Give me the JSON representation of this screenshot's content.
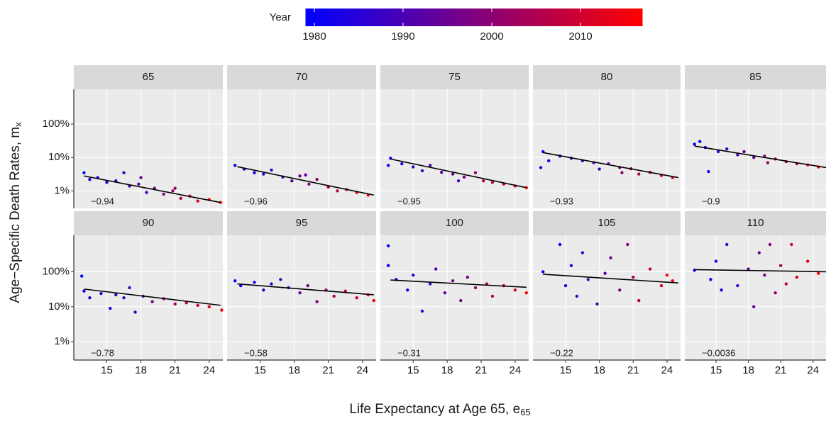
{
  "chart_data": {
    "type": "scatter",
    "x_label": "Life Expectancy at Age 65, e",
    "x_label_sub": "65",
    "y_label": "Age−Specific Death Rates, m",
    "y_label_sub": "x",
    "log_y": true,
    "grid": true,
    "xlim": [
      12.1,
      25.2
    ],
    "xticks": [
      15,
      18,
      21,
      24
    ],
    "ylim": [
      0.3,
      1100
    ],
    "yticks": [
      {
        "value": 1,
        "label": "1%"
      },
      {
        "value": 10,
        "label": "10%"
      },
      {
        "value": 100,
        "label": "100%"
      }
    ],
    "fit_color": "#000000",
    "colorbar": {
      "title": "Year",
      "lim": [
        1979,
        2017
      ],
      "ticks": [
        1980,
        1990,
        2000,
        2010
      ],
      "low": "#0000ff",
      "high": "#ff0000"
    },
    "facets": [
      {
        "label": "65",
        "corr": "−0.94",
        "fit_x": [
          13,
          25
        ],
        "fit_y": [
          2.8,
          0.45
        ],
        "points": [
          [
            13,
            3.5,
            1979
          ],
          [
            13.5,
            2.2,
            1980
          ],
          [
            14.2,
            2.5,
            1981
          ],
          [
            15,
            1.8,
            1984
          ],
          [
            15.8,
            2.0,
            1986
          ],
          [
            16.5,
            3.5,
            1988
          ],
          [
            17,
            1.4,
            1989
          ],
          [
            17.8,
            1.6,
            1992
          ],
          [
            18.5,
            0.9,
            1990
          ],
          [
            19.2,
            1.2,
            1996
          ],
          [
            20,
            0.8,
            2000
          ],
          [
            20.8,
            1.0,
            2003
          ],
          [
            21.5,
            0.6,
            2006
          ],
          [
            22.3,
            0.7,
            2009
          ],
          [
            23,
            0.5,
            2012
          ],
          [
            24,
            0.55,
            2015
          ],
          [
            25,
            0.45,
            2017
          ],
          [
            18,
            2.5,
            1995
          ],
          [
            21,
            1.2,
            2001
          ]
        ]
      },
      {
        "label": "70",
        "corr": "−0.96",
        "fit_x": [
          13,
          25
        ],
        "fit_y": [
          5.3,
          0.75
        ],
        "points": [
          [
            12.8,
            5.8,
            1979
          ],
          [
            13.6,
            4.5,
            1980
          ],
          [
            14.5,
            3.5,
            1983
          ],
          [
            15.3,
            3.2,
            1985
          ],
          [
            16,
            4.2,
            1988
          ],
          [
            17,
            2.6,
            1990
          ],
          [
            17.8,
            2.0,
            1993
          ],
          [
            18.5,
            2.8,
            1995
          ],
          [
            19.3,
            1.6,
            1998
          ],
          [
            20,
            2.2,
            2001
          ],
          [
            21,
            1.3,
            2004
          ],
          [
            21.8,
            1.0,
            2007
          ],
          [
            22.6,
            1.1,
            2010
          ],
          [
            23.5,
            0.9,
            2013
          ],
          [
            24.5,
            0.75,
            2016
          ],
          [
            19,
            3.0,
            1992
          ]
        ]
      },
      {
        "label": "75",
        "corr": "−0.95",
        "fit_x": [
          13,
          25
        ],
        "fit_y": [
          9,
          1.25
        ],
        "points": [
          [
            13,
            9.5,
            1979
          ],
          [
            12.8,
            5.8,
            1980
          ],
          [
            14,
            6.5,
            1982
          ],
          [
            15,
            5.2,
            1985
          ],
          [
            15.8,
            4.0,
            1987
          ],
          [
            16.5,
            5.8,
            1990
          ],
          [
            17.5,
            3.6,
            1992
          ],
          [
            18.5,
            3.2,
            1995
          ],
          [
            19.5,
            2.6,
            1998
          ],
          [
            20.5,
            3.5,
            2001
          ],
          [
            21.2,
            2.0,
            2004
          ],
          [
            22,
            1.8,
            2007
          ],
          [
            23,
            1.6,
            2010
          ],
          [
            24,
            1.4,
            2013
          ],
          [
            25,
            1.25,
            2016
          ],
          [
            19,
            2.0,
            1990
          ]
        ]
      },
      {
        "label": "80",
        "corr": "−0.93",
        "fit_x": [
          13,
          25
        ],
        "fit_y": [
          14,
          2.5
        ],
        "points": [
          [
            13,
            15,
            1979
          ],
          [
            12.8,
            5,
            1980
          ],
          [
            13.5,
            8,
            1981
          ],
          [
            14.5,
            11,
            1983
          ],
          [
            15.5,
            9.5,
            1986
          ],
          [
            16.5,
            8,
            1989
          ],
          [
            17.5,
            7,
            1992
          ],
          [
            18,
            4.5,
            1988
          ],
          [
            18.8,
            6.5,
            1995
          ],
          [
            19.8,
            5,
            1998
          ],
          [
            20.8,
            4.6,
            2002
          ],
          [
            21.5,
            3.2,
            2005
          ],
          [
            22.5,
            3.6,
            2008
          ],
          [
            23.5,
            2.9,
            2011
          ],
          [
            24.5,
            2.5,
            2015
          ],
          [
            20,
            3.5,
            2000
          ]
        ]
      },
      {
        "label": "85",
        "corr": "−0.9",
        "fit_x": [
          13,
          25.2
        ],
        "fit_y": [
          22,
          5
        ],
        "points": [
          [
            13,
            25,
            1979
          ],
          [
            13.5,
            30,
            1980
          ],
          [
            14,
            20,
            1982
          ],
          [
            14.3,
            3.8,
            1981
          ],
          [
            15.2,
            15,
            1984
          ],
          [
            16,
            18,
            1987
          ],
          [
            17,
            12,
            1990
          ],
          [
            17.6,
            15,
            1992
          ],
          [
            18.5,
            10,
            1994
          ],
          [
            19.5,
            11,
            1997
          ],
          [
            20.5,
            9,
            2000
          ],
          [
            21.5,
            7.5,
            2004
          ],
          [
            22.5,
            6.5,
            2008
          ],
          [
            23.5,
            6,
            2012
          ],
          [
            24.5,
            5.2,
            2015
          ],
          [
            19.8,
            7,
            2001
          ]
        ]
      },
      {
        "label": "90",
        "corr": "−0.78",
        "fit_x": [
          13,
          25
        ],
        "fit_y": [
          32,
          11
        ],
        "points": [
          [
            12.8,
            75,
            1979
          ],
          [
            13,
            28,
            1980
          ],
          [
            13.5,
            18,
            1981
          ],
          [
            14.5,
            24,
            1983
          ],
          [
            15.3,
            9,
            1984
          ],
          [
            15.8,
            22,
            1986
          ],
          [
            16.5,
            18,
            1988
          ],
          [
            17,
            35,
            1990
          ],
          [
            17.5,
            7,
            1989
          ],
          [
            18.2,
            20,
            1993
          ],
          [
            19,
            14,
            1996
          ],
          [
            20,
            17,
            1999
          ],
          [
            21,
            12,
            2003
          ],
          [
            22,
            13,
            2006
          ],
          [
            23,
            11,
            2010
          ],
          [
            24,
            10,
            2013
          ],
          [
            25.1,
            8,
            2016
          ]
        ]
      },
      {
        "label": "95",
        "corr": "−0.58",
        "fit_x": [
          13,
          25
        ],
        "fit_y": [
          45,
          22
        ],
        "points": [
          [
            12.8,
            55,
            1979
          ],
          [
            13.3,
            40,
            1980
          ],
          [
            14.5,
            50,
            1983
          ],
          [
            15.3,
            30,
            1985
          ],
          [
            16,
            45,
            1987
          ],
          [
            16.8,
            60,
            1990
          ],
          [
            17.5,
            35,
            1992
          ],
          [
            18.5,
            25,
            1995
          ],
          [
            19.2,
            40,
            1997
          ],
          [
            20,
            14,
            1998
          ],
          [
            20.8,
            30,
            2001
          ],
          [
            21.5,
            20,
            2004
          ],
          [
            22.5,
            28,
            2008
          ],
          [
            23.5,
            18,
            2011
          ],
          [
            24.5,
            22,
            2014
          ],
          [
            25,
            15,
            2016
          ]
        ]
      },
      {
        "label": "100",
        "corr": "−0.31",
        "fit_x": [
          13,
          25
        ],
        "fit_y": [
          58,
          36
        ],
        "points": [
          [
            12.8,
            550,
            1979
          ],
          [
            12.8,
            150,
            1980
          ],
          [
            13.5,
            60,
            1981
          ],
          [
            14.5,
            30,
            1983
          ],
          [
            15,
            80,
            1984
          ],
          [
            15.8,
            7.5,
            1986
          ],
          [
            16.5,
            45,
            1988
          ],
          [
            17,
            120,
            1990
          ],
          [
            17.8,
            25,
            1992
          ],
          [
            18.5,
            55,
            1995
          ],
          [
            19.2,
            15,
            1996
          ],
          [
            19.8,
            70,
            1998
          ],
          [
            20.5,
            35,
            2001
          ],
          [
            21.5,
            45,
            2005
          ],
          [
            22,
            20,
            2007
          ],
          [
            23,
            40,
            2010
          ],
          [
            24,
            30,
            2013
          ],
          [
            25,
            25,
            2016
          ]
        ]
      },
      {
        "label": "105",
        "corr": "−0.22",
        "fit_x": [
          13,
          25
        ],
        "fit_y": [
          85,
          48
        ],
        "points": [
          [
            13,
            100,
            1979
          ],
          [
            14.5,
            600,
            1981
          ],
          [
            15,
            40,
            1984
          ],
          [
            15.5,
            150,
            1985
          ],
          [
            16,
            20,
            1986
          ],
          [
            16.5,
            350,
            1988
          ],
          [
            17,
            60,
            1990
          ],
          [
            17.8,
            12,
            1991
          ],
          [
            18.5,
            90,
            1994
          ],
          [
            19,
            250,
            1996
          ],
          [
            19.8,
            30,
            1998
          ],
          [
            20.5,
            600,
            2000
          ],
          [
            21,
            70,
            2003
          ],
          [
            21.5,
            15,
            2005
          ],
          [
            22.5,
            120,
            2008
          ],
          [
            23.5,
            40,
            2011
          ],
          [
            24.5,
            55,
            2014
          ],
          [
            24,
            80,
            2016
          ]
        ]
      },
      {
        "label": "110",
        "corr": "−0.0036",
        "fit_x": [
          13,
          25.2
        ],
        "fit_y": [
          115,
          100
        ],
        "points": [
          [
            13,
            110,
            1979
          ],
          [
            14.5,
            60,
            1981
          ],
          [
            15,
            200,
            1983
          ],
          [
            15.5,
            30,
            1985
          ],
          [
            16,
            600,
            1987
          ],
          [
            17,
            40,
            1989
          ],
          [
            18,
            120,
            1992
          ],
          [
            18.5,
            10,
            1994
          ],
          [
            19,
            350,
            1995
          ],
          [
            19.5,
            80,
            1997
          ],
          [
            20,
            600,
            1999
          ],
          [
            20.5,
            25,
            2002
          ],
          [
            21,
            150,
            2005
          ],
          [
            21.5,
            45,
            2007
          ],
          [
            22,
            600,
            2010
          ],
          [
            22.5,
            70,
            2012
          ],
          [
            23.5,
            200,
            2014
          ],
          [
            24.5,
            90,
            2016
          ]
        ]
      }
    ]
  }
}
